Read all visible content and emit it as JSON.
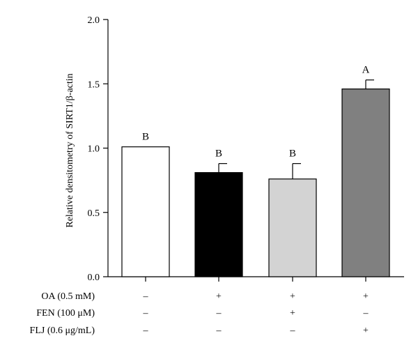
{
  "chart_data": {
    "type": "bar",
    "ylabel": "Relative densitometry of SIRT1/β-actin",
    "ylim": [
      0,
      2.0
    ],
    "yticks": [
      "0.0",
      "0.5",
      "1.0",
      "1.5",
      "2.0"
    ],
    "ytick_values": [
      0,
      0.5,
      1.0,
      1.5,
      2.0
    ],
    "grid": false,
    "bars": [
      {
        "value": 1.01,
        "error": 0.0,
        "label": "B",
        "color": "#ffffff"
      },
      {
        "value": 0.81,
        "error": 0.07,
        "label": "B",
        "color": "#000000"
      },
      {
        "value": 0.76,
        "error": 0.12,
        "label": "B",
        "color": "#d3d3d3"
      },
      {
        "value": 1.46,
        "error": 0.07,
        "label": "A",
        "color": "#808080"
      }
    ],
    "treatment_rows": [
      {
        "label": "OA (0.5 mM)",
        "signs": [
          "–",
          "+",
          "+",
          "+"
        ]
      },
      {
        "label": "FEN (100 μM)",
        "signs": [
          "–",
          "–",
          "+",
          "–"
        ]
      },
      {
        "label": "FLJ (0.6 μg/mL)",
        "signs": [
          "–",
          "–",
          "–",
          "+"
        ]
      }
    ]
  }
}
